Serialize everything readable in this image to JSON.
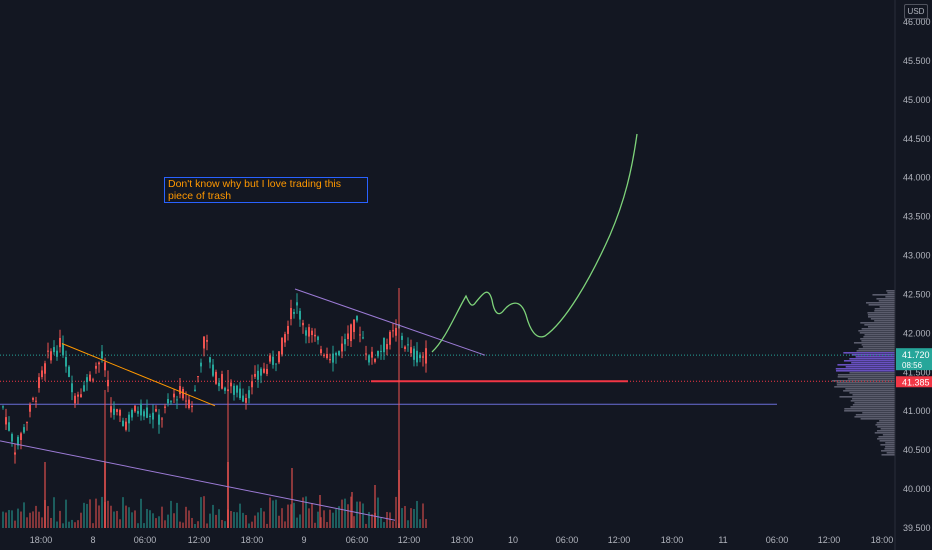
{
  "currency": "USD",
  "note": "Don't know why but I love trading this piece of trash",
  "colors": {
    "background": "#131722",
    "candle_up": "#26a69a",
    "candle_down": "#ef5350",
    "trendline_purple": "#9c7bd6",
    "trendline_orange": "#ff9800",
    "support_red": "#f23645",
    "projection_green": "#7ed37a",
    "price_label": "#26a69a",
    "level_label": "#f23645"
  },
  "price_labels": {
    "last_price": "41.720",
    "countdown": "08:56",
    "level": "41.385"
  },
  "chart_data": {
    "type": "candlestick",
    "y_axis": {
      "ticks": [
        "46.000",
        "45.500",
        "45.000",
        "44.500",
        "44.000",
        "43.500",
        "43.000",
        "42.500",
        "42.000",
        "41.500",
        "41.000",
        "40.500",
        "40.000",
        "39.500"
      ],
      "ylim": [
        39.5,
        46.0
      ]
    },
    "x_axis": {
      "ticks": [
        "18:00",
        "8",
        "06:00",
        "12:00",
        "18:00",
        "9",
        "06:00",
        "12:00",
        "18:00",
        "10",
        "06:00",
        "12:00",
        "18:00",
        "11",
        "06:00",
        "12:00",
        "18:00"
      ]
    },
    "last_price": 41.72,
    "horizontal_levels": [
      41.385,
      41.09
    ],
    "trendlines": [
      {
        "name": "descending-purple-upper",
        "from": [
          "bar",
          0
        ],
        "points": [
          [
            295,
            42.57
          ],
          [
            485,
            41.72
          ]
        ]
      },
      {
        "name": "descending-orange",
        "points": [
          [
            62,
            41.87
          ],
          [
            215,
            41.07
          ]
        ]
      },
      {
        "name": "descending-purple-lower",
        "points": [
          [
            0,
            40.62
          ],
          [
            395,
            39.6
          ]
        ]
      }
    ],
    "projection": [
      41.72,
      42.45,
      42.3,
      42.5,
      42.2,
      42.25,
      41.95,
      42.5,
      43.5,
      44.55
    ]
  }
}
